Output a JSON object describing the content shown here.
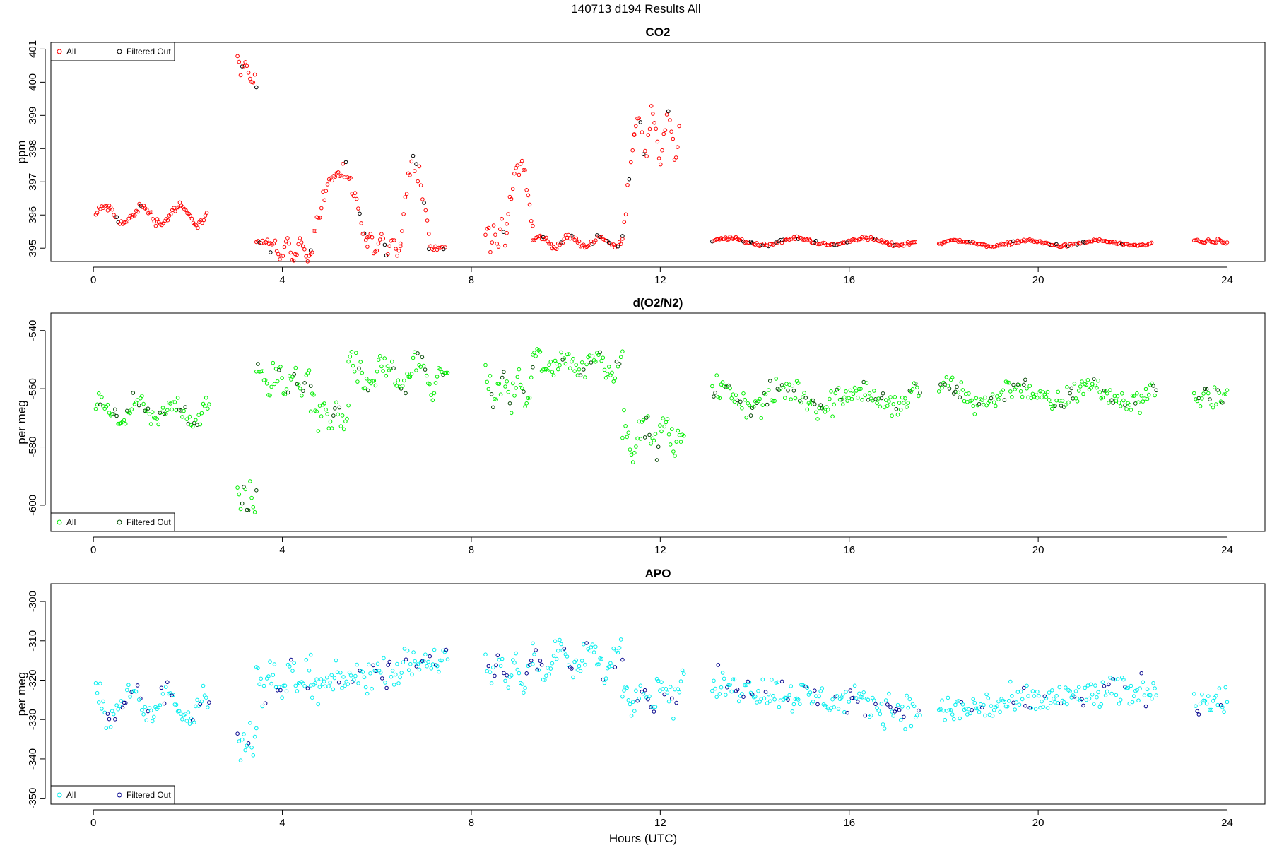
{
  "figure": {
    "title": "140713   d194   Results All",
    "xlabel": "Hours (UTC)"
  },
  "chart_data": [
    {
      "type": "scatter",
      "title": "CO2",
      "xlabel": "Hours (UTC)",
      "ylabel": "ppm",
      "xlim": [
        -0.9,
        24.8
      ],
      "ylim": [
        394.6,
        401.2
      ],
      "x_ticks": [
        0,
        4,
        8,
        12,
        16,
        20,
        24
      ],
      "y_ticks": [
        395,
        396,
        397,
        398,
        399,
        400,
        401
      ],
      "y_tick_labels": [
        "395",
        "396",
        "397",
        "398",
        "399",
        "400",
        "401"
      ],
      "legend": {
        "position": "top-left",
        "entries": [
          "All",
          "Filtered Out"
        ]
      },
      "colors": {
        "all": "#ff0000",
        "filtered": "#000000"
      },
      "series": [
        {
          "name": "All",
          "segments": [
            {
              "start": 0.05,
              "end": 2.4,
              "kind": "flat",
              "base": 396.0,
              "amp": 0.25,
              "spread": 0.2
            },
            {
              "start": 3.05,
              "end": 3.45,
              "kind": "peak",
              "base": 399.9,
              "amp": 0.7,
              "spread": 0.45
            },
            {
              "start": 3.45,
              "end": 3.75,
              "kind": "flat",
              "base": 395.2,
              "amp": 0.05,
              "spread": 0.08
            },
            {
              "start": 3.75,
              "end": 4.6,
              "kind": "flat",
              "base": 394.95,
              "amp": 0.25,
              "spread": 0.2
            },
            {
              "start": 4.6,
              "end": 5.8,
              "kind": "hump",
              "base": 395.0,
              "amp": 2.3,
              "spread": 0.5
            },
            {
              "start": 5.8,
              "end": 6.5,
              "kind": "flat",
              "base": 395.1,
              "amp": 0.25,
              "spread": 0.2
            },
            {
              "start": 6.5,
              "end": 7.1,
              "kind": "hump",
              "base": 395.3,
              "amp": 2.3,
              "spread": 0.5
            },
            {
              "start": 7.1,
              "end": 7.45,
              "kind": "flat",
              "base": 395.0,
              "amp": 0.05,
              "spread": 0.08
            },
            {
              "start": 8.3,
              "end": 8.75,
              "kind": "flat",
              "base": 395.4,
              "amp": 0.3,
              "spread": 0.3
            },
            {
              "start": 8.75,
              "end": 9.3,
              "kind": "hump",
              "base": 395.6,
              "amp": 2.0,
              "spread": 0.5
            },
            {
              "start": 9.3,
              "end": 11.2,
              "kind": "flat",
              "base": 395.2,
              "amp": 0.15,
              "spread": 0.12
            },
            {
              "start": 11.2,
              "end": 11.45,
              "kind": "ramp",
              "base": 395.5,
              "amp": 3.0,
              "spread": 0.4
            },
            {
              "start": 11.45,
              "end": 12.4,
              "kind": "flat",
              "base": 398.4,
              "amp": 0.7,
              "spread": 0.45
            },
            {
              "start": 13.1,
              "end": 17.4,
              "kind": "flat",
              "base": 395.2,
              "amp": 0.1,
              "spread": 0.08
            },
            {
              "start": 17.9,
              "end": 22.4,
              "kind": "flat",
              "base": 395.15,
              "amp": 0.08,
              "spread": 0.07
            },
            {
              "start": 23.3,
              "end": 24.0,
              "kind": "flat",
              "base": 395.2,
              "amp": 0.05,
              "spread": 0.06
            }
          ]
        }
      ]
    },
    {
      "type": "scatter",
      "title": "d(O2/N2)",
      "xlabel": "Hours (UTC)",
      "ylabel": "per meg",
      "xlim": [
        -0.9,
        24.8
      ],
      "ylim": [
        -609,
        -534
      ],
      "x_ticks": [
        0,
        4,
        8,
        12,
        16,
        20,
        24
      ],
      "y_ticks": [
        -600,
        -580,
        -560,
        -540
      ],
      "y_tick_labels": [
        "-600",
        "-580",
        "-560",
        "-540"
      ],
      "legend": {
        "position": "bottom-left",
        "entries": [
          "All",
          "Filtered Out"
        ]
      },
      "colors": {
        "all": "#00ee00",
        "filtered": "#004400"
      },
      "series": [
        {
          "name": "All",
          "segments": [
            {
              "start": 0.05,
              "end": 2.45,
              "kind": "flat",
              "base": -568,
              "amp": 3,
              "spread": 5
            },
            {
              "start": 3.05,
              "end": 3.45,
              "kind": "flat",
              "base": -598,
              "amp": 4,
              "spread": 5
            },
            {
              "start": 3.45,
              "end": 4.6,
              "kind": "flat",
              "base": -557,
              "amp": 3,
              "spread": 7
            },
            {
              "start": 4.6,
              "end": 5.4,
              "kind": "flat",
              "base": -568,
              "amp": 3,
              "spread": 7
            },
            {
              "start": 5.4,
              "end": 7.5,
              "kind": "flat",
              "base": -555,
              "amp": 4,
              "spread": 7
            },
            {
              "start": 8.3,
              "end": 9.3,
              "kind": "flat",
              "base": -560,
              "amp": 4,
              "spread": 8
            },
            {
              "start": 9.3,
              "end": 11.2,
              "kind": "flat",
              "base": -551,
              "amp": 3,
              "spread": 6
            },
            {
              "start": 11.2,
              "end": 12.5,
              "kind": "flat",
              "base": -576,
              "amp": 4,
              "spread": 7
            },
            {
              "start": 13.1,
              "end": 17.5,
              "kind": "flat",
              "base": -563,
              "amp": 3,
              "spread": 7
            },
            {
              "start": 17.9,
              "end": 22.5,
              "kind": "flat",
              "base": -562,
              "amp": 3,
              "spread": 6
            },
            {
              "start": 23.3,
              "end": 24.0,
              "kind": "flat",
              "base": -563,
              "amp": 2,
              "spread": 5
            }
          ]
        }
      ]
    },
    {
      "type": "scatter",
      "title": "APO",
      "xlabel": "Hours (UTC)",
      "ylabel": "per meg",
      "xlim": [
        -0.9,
        24.8
      ],
      "ylim": [
        -351.5,
        -295.5
      ],
      "x_ticks": [
        0,
        4,
        8,
        12,
        16,
        20,
        24
      ],
      "y_ticks": [
        -350,
        -340,
        -330,
        -320,
        -310,
        -300
      ],
      "y_tick_labels": [
        "-350",
        "-340",
        "-330",
        "-320",
        "-310",
        "-300"
      ],
      "legend": {
        "position": "bottom-left",
        "entries": [
          "All",
          "Filtered Out"
        ]
      },
      "colors": {
        "all": "#00eeee",
        "filtered": "#00008b"
      },
      "series": [
        {
          "name": "All",
          "segments": [
            {
              "start": 0.05,
              "end": 2.45,
              "kind": "flat",
              "base": -326,
              "amp": 3,
              "spread": 5
            },
            {
              "start": 3.05,
              "end": 3.45,
              "kind": "flat",
              "base": -336,
              "amp": 3,
              "spread": 4
            },
            {
              "start": 3.45,
              "end": 4.6,
              "kind": "flat",
              "base": -320,
              "amp": 3,
              "spread": 6
            },
            {
              "start": 4.6,
              "end": 7.5,
              "kind": "ramp",
              "base": -322,
              "amp": 8,
              "spread": 6
            },
            {
              "start": 8.3,
              "end": 9.3,
              "kind": "flat",
              "base": -318,
              "amp": 3,
              "spread": 6
            },
            {
              "start": 9.3,
              "end": 11.2,
              "kind": "flat",
              "base": -315,
              "amp": 3,
              "spread": 5
            },
            {
              "start": 11.2,
              "end": 12.5,
              "kind": "flat",
              "base": -323,
              "amp": 3,
              "spread": 6
            },
            {
              "start": 13.1,
              "end": 17.5,
              "kind": "ramp",
              "base": -321,
              "amp": -7,
              "spread": 6
            },
            {
              "start": 17.9,
              "end": 22.5,
              "kind": "ramp",
              "base": -328,
              "amp": 6,
              "spread": 6
            },
            {
              "start": 23.3,
              "end": 24.0,
              "kind": "flat",
              "base": -325,
              "amp": 2,
              "spread": 5
            }
          ]
        }
      ]
    }
  ]
}
